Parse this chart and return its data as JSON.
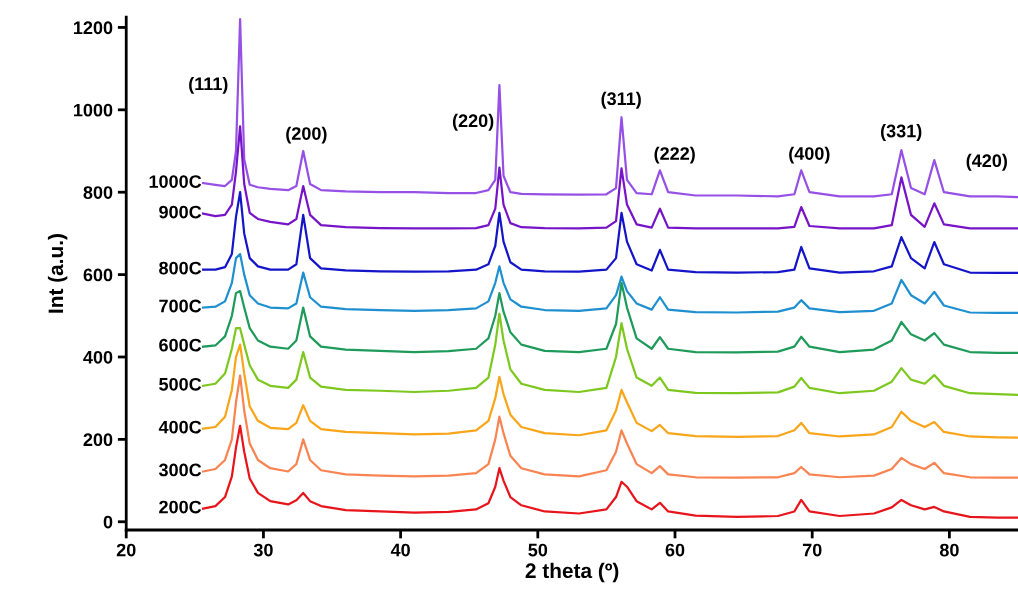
{
  "chart_data": {
    "type": "line",
    "xlabel": "2 theta (º)",
    "ylabel": "Int (a.u.)",
    "xlim": [
      20,
      85
    ],
    "ylim": [
      -20,
      1225
    ],
    "xticks": [
      20,
      30,
      40,
      50,
      60,
      70,
      80
    ],
    "yticks": [
      0,
      200,
      400,
      600,
      800,
      1000,
      1200
    ],
    "grid": false,
    "legend": false,
    "marker": "none",
    "line_style": "solid",
    "x": [
      25.6,
      26.5,
      27.2,
      27.7,
      28.0,
      28.3,
      28.6,
      29.0,
      29.6,
      30.5,
      31.8,
      32.4,
      32.9,
      33.4,
      34.2,
      36,
      38.5,
      41,
      43.5,
      45.5,
      46.4,
      46.9,
      47.2,
      47.5,
      48.0,
      48.8,
      50.5,
      53,
      55.0,
      55.7,
      56.1,
      56.5,
      57.2,
      58.3,
      58.9,
      59.5,
      61.5,
      64.5,
      67.5,
      68.7,
      69.2,
      69.8,
      72,
      74.5,
      75.8,
      76.5,
      77.2,
      78.2,
      78.9,
      79.6,
      81.5,
      83.5,
      85
    ],
    "series": [
      {
        "name": "1000C",
        "color": "#9650e6",
        "values": [
          822,
          818,
          815,
          830,
          900,
          1220,
          880,
          818,
          812,
          808,
          805,
          815,
          900,
          820,
          805,
          802,
          800,
          800,
          798,
          798,
          805,
          830,
          1060,
          840,
          800,
          796,
          795,
          794,
          795,
          810,
          982,
          830,
          798,
          795,
          853,
          800,
          792,
          792,
          790,
          795,
          853,
          800,
          790,
          790,
          795,
          902,
          810,
          795,
          878,
          800,
          790,
          790,
          788
        ]
      },
      {
        "name": "900C",
        "color": "#7814c8",
        "values": [
          748,
          742,
          745,
          770,
          850,
          960,
          820,
          750,
          735,
          728,
          722,
          735,
          815,
          745,
          720,
          715,
          713,
          712,
          712,
          713,
          720,
          760,
          860,
          770,
          725,
          715,
          713,
          712,
          714,
          730,
          858,
          770,
          722,
          714,
          760,
          714,
          712,
          712,
          712,
          716,
          764,
          718,
          712,
          712,
          720,
          836,
          745,
          716,
          773,
          722,
          712,
          712,
          712
        ]
      },
      {
        "name": "800C",
        "color": "#1414c8",
        "values": [
          612,
          612,
          618,
          650,
          740,
          800,
          700,
          640,
          620,
          612,
          612,
          625,
          745,
          640,
          615,
          610,
          608,
          607,
          608,
          612,
          625,
          670,
          750,
          680,
          630,
          612,
          608,
          607,
          612,
          640,
          750,
          680,
          625,
          610,
          660,
          612,
          606,
          605,
          606,
          612,
          667,
          615,
          605,
          608,
          620,
          691,
          640,
          615,
          679,
          625,
          605,
          604,
          604
        ]
      },
      {
        "name": "700C",
        "color": "#1e8fcf",
        "values": [
          520,
          522,
          535,
          580,
          640,
          650,
          600,
          550,
          530,
          520,
          518,
          530,
          605,
          545,
          522,
          516,
          514,
          512,
          514,
          518,
          535,
          580,
          620,
          580,
          540,
          522,
          514,
          512,
          518,
          550,
          595,
          560,
          530,
          515,
          545,
          515,
          509,
          508,
          510,
          520,
          538,
          518,
          509,
          512,
          530,
          587,
          550,
          530,
          558,
          525,
          508,
          507,
          507
        ]
      },
      {
        "name": "600C",
        "color": "#1e9a5a",
        "values": [
          425,
          428,
          450,
          500,
          555,
          560,
          520,
          470,
          440,
          425,
          420,
          440,
          520,
          450,
          425,
          418,
          415,
          412,
          414,
          420,
          445,
          500,
          555,
          510,
          460,
          430,
          415,
          412,
          420,
          480,
          580,
          520,
          445,
          420,
          448,
          420,
          412,
          411,
          413,
          425,
          449,
          425,
          412,
          418,
          440,
          485,
          455,
          440,
          458,
          430,
          412,
          410,
          410
        ]
      },
      {
        "name": "500C",
        "color": "#7dc81e",
        "values": [
          330,
          335,
          360,
          420,
          470,
          470,
          430,
          380,
          345,
          330,
          325,
          345,
          412,
          350,
          328,
          320,
          318,
          315,
          318,
          325,
          350,
          430,
          505,
          440,
          370,
          335,
          320,
          315,
          325,
          400,
          482,
          420,
          350,
          330,
          350,
          320,
          313,
          312,
          314,
          328,
          349,
          325,
          312,
          318,
          340,
          373,
          345,
          335,
          356,
          330,
          312,
          310,
          308
        ]
      },
      {
        "name": "400C",
        "color": "#f9a51a",
        "values": [
          226,
          230,
          255,
          320,
          400,
          430,
          360,
          280,
          245,
          228,
          225,
          240,
          283,
          245,
          225,
          218,
          215,
          212,
          214,
          222,
          245,
          300,
          352,
          310,
          260,
          230,
          215,
          210,
          222,
          270,
          320,
          290,
          240,
          220,
          235,
          215,
          208,
          206,
          208,
          222,
          240,
          215,
          207,
          212,
          230,
          267,
          245,
          230,
          242,
          218,
          207,
          205,
          204
        ]
      },
      {
        "name": "300C",
        "color": "#f98452",
        "values": [
          122,
          128,
          150,
          200,
          290,
          355,
          270,
          190,
          150,
          130,
          122,
          140,
          200,
          150,
          125,
          115,
          112,
          110,
          112,
          118,
          140,
          200,
          255,
          215,
          160,
          130,
          115,
          110,
          125,
          170,
          222,
          190,
          140,
          118,
          135,
          115,
          108,
          107,
          108,
          118,
          133,
          115,
          108,
          112,
          128,
          155,
          140,
          128,
          143,
          118,
          108,
          107,
          107
        ]
      },
      {
        "name": "200C",
        "color": "#e8141b",
        "values": [
          32,
          38,
          60,
          110,
          180,
          233,
          170,
          105,
          70,
          50,
          42,
          52,
          70,
          50,
          38,
          28,
          25,
          22,
          24,
          30,
          45,
          85,
          130,
          100,
          60,
          40,
          25,
          20,
          30,
          60,
          97,
          85,
          50,
          30,
          46,
          25,
          15,
          12,
          14,
          25,
          53,
          25,
          14,
          20,
          35,
          53,
          40,
          30,
          36,
          25,
          12,
          10,
          10
        ]
      }
    ],
    "annotations": [
      "(111)",
      "(200)",
      "(220)",
      "(311)",
      "(222)",
      "(400)",
      "(331)",
      "(420)"
    ]
  }
}
